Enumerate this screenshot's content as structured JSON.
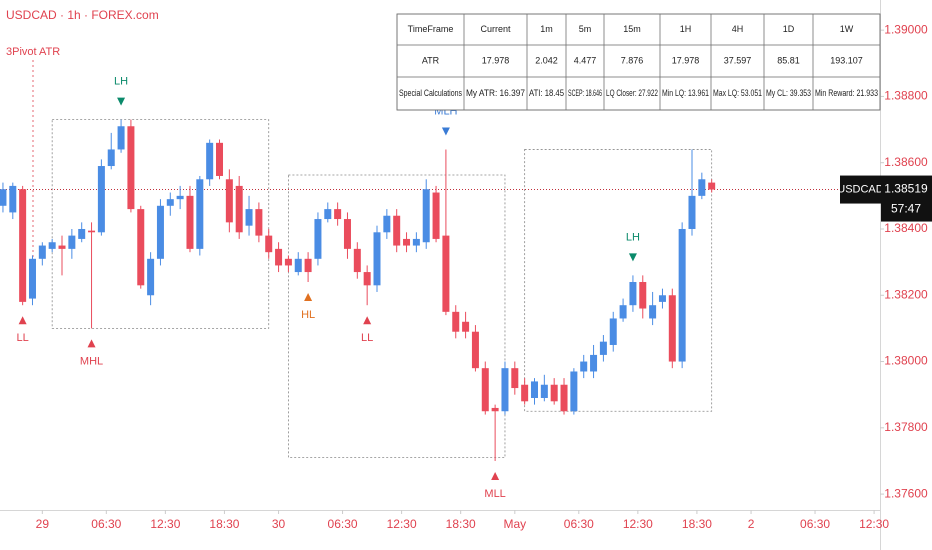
{
  "chart_data": {
    "type": "candlestick",
    "title": "USDCAD · 1h · FOREX.com",
    "indicator": "3Pivot ATR",
    "symbol": "USDCAD",
    "last_price": 1.38519,
    "countdown": "57:47",
    "up_color": "#4a8ce4",
    "down_color": "#ea4c5c",
    "grid": false,
    "xlim": [
      -4.3,
      85.1
    ],
    "xticks": [
      {
        "value": 0,
        "label": "29"
      },
      {
        "value": 6.5,
        "label": "06:30"
      },
      {
        "value": 12.5,
        "label": "12:30"
      },
      {
        "value": 18.5,
        "label": "18:30"
      },
      {
        "value": 24,
        "label": "30"
      },
      {
        "value": 30.5,
        "label": "06:30"
      },
      {
        "value": 36.5,
        "label": "12:30"
      },
      {
        "value": 42.5,
        "label": "18:30"
      },
      {
        "value": 48,
        "label": "May"
      },
      {
        "value": 54.5,
        "label": "06:30"
      },
      {
        "value": 60.5,
        "label": "12:30"
      },
      {
        "value": 66.5,
        "label": "18:30"
      },
      {
        "value": 72,
        "label": "2"
      },
      {
        "value": 78.5,
        "label": "06:30"
      },
      {
        "value": 84.5,
        "label": "12:30"
      }
    ],
    "ylim": [
      1.37552,
      1.39091
    ],
    "yticks": [
      {
        "value": 1.376,
        "label": "1.37600"
      },
      {
        "value": 1.378,
        "label": "1.37800"
      },
      {
        "value": 1.38,
        "label": "1.38000"
      },
      {
        "value": 1.382,
        "label": "1.38200"
      },
      {
        "value": 1.384,
        "label": "1.38400"
      },
      {
        "value": 1.386,
        "label": "1.38600"
      },
      {
        "value": 1.388,
        "label": "1.38800"
      },
      {
        "value": 1.39,
        "label": "1.39000"
      }
    ],
    "x": [
      -4,
      -3,
      -2,
      -1,
      0,
      1,
      2,
      3,
      4,
      5,
      6,
      7,
      8,
      9,
      10,
      11,
      12,
      13,
      14,
      15,
      16,
      17,
      18,
      19,
      20,
      21,
      22,
      23,
      24,
      25,
      26,
      27,
      28,
      29,
      30,
      31,
      32,
      33,
      34,
      35,
      36,
      37,
      38,
      39,
      40,
      41,
      42,
      43,
      44,
      45,
      46,
      47,
      48,
      49,
      50,
      51,
      52,
      53,
      54,
      55,
      56,
      57,
      58,
      59,
      60,
      61,
      62,
      63,
      64,
      65,
      66,
      67,
      68
    ],
    "open": [
      1.3847,
      1.3845,
      1.3852,
      1.3819,
      1.3831,
      1.3834,
      1.3835,
      1.3834,
      1.3837,
      1.38395,
      1.3839,
      1.3859,
      1.3864,
      1.3871,
      1.3846,
      1.382,
      1.3831,
      1.3847,
      1.3849,
      1.385,
      1.3834,
      1.3855,
      1.3866,
      1.3855,
      1.3853,
      1.3841,
      1.3846,
      1.3838,
      1.3834,
      1.3831,
      1.3827,
      1.3831,
      1.3831,
      1.3843,
      1.3846,
      1.3843,
      1.3834,
      1.3827,
      1.3823,
      1.3839,
      1.3844,
      1.3837,
      1.3835,
      1.3836,
      1.3851,
      1.3838,
      1.3815,
      1.3812,
      1.3809,
      1.3798,
      1.3786,
      1.3785,
      1.3798,
      1.3793,
      1.3789,
      1.3789,
      1.3793,
      1.3793,
      1.3785,
      1.3797,
      1.3797,
      1.3802,
      1.3805,
      1.3813,
      1.3817,
      1.3824,
      1.3813,
      1.3818,
      1.382,
      1.38,
      1.384,
      1.385,
      1.3854
    ],
    "high": [
      1.3854,
      1.3854,
      1.3853,
      1.3832,
      1.3836,
      1.3837,
      1.3838,
      1.384,
      1.3842,
      1.3842,
      1.3861,
      1.3869,
      1.3873,
      1.3873,
      1.3847,
      1.3833,
      1.3849,
      1.3851,
      1.3853,
      1.3853,
      1.3856,
      1.3867,
      1.3867,
      1.3858,
      1.3856,
      1.385,
      1.3848,
      1.384,
      1.3836,
      1.3832,
      1.3833,
      1.3833,
      1.3845,
      1.3848,
      1.3848,
      1.3845,
      1.3836,
      1.3829,
      1.3841,
      1.3846,
      1.3846,
      1.3839,
      1.3839,
      1.3855,
      1.3853,
      1.3864,
      1.3817,
      1.3815,
      1.3811,
      1.38,
      1.3787,
      1.38,
      1.38,
      1.3795,
      1.3795,
      1.3796,
      1.3795,
      1.3795,
      1.3798,
      1.3802,
      1.3805,
      1.3808,
      1.3815,
      1.3819,
      1.3826,
      1.3826,
      1.3821,
      1.3822,
      1.3822,
      1.3842,
      1.3864,
      1.3857,
      1.3855
    ],
    "low": [
      1.3845,
      1.3843,
      1.3817,
      1.3817,
      1.3829,
      1.3833,
      1.3826,
      1.3831,
      1.3836,
      1.381,
      1.3838,
      1.3858,
      1.3863,
      1.3845,
      1.3822,
      1.3817,
      1.3829,
      1.3844,
      1.3846,
      1.3833,
      1.3832,
      1.3853,
      1.3855,
      1.3839,
      1.3837,
      1.3838,
      1.3836,
      1.3831,
      1.3827,
      1.3827,
      1.3826,
      1.3824,
      1.3829,
      1.3842,
      1.3841,
      1.3831,
      1.3825,
      1.3817,
      1.3821,
      1.3837,
      1.3833,
      1.3833,
      1.3833,
      1.3834,
      1.3836,
      1.3814,
      1.3807,
      1.3807,
      1.3797,
      1.3784,
      1.377,
      1.3784,
      1.379,
      1.3787,
      1.3787,
      1.3788,
      1.3787,
      1.3784,
      1.3784,
      1.3795,
      1.3795,
      1.38,
      1.3803,
      1.3812,
      1.3815,
      1.3813,
      1.3811,
      1.3816,
      1.3798,
      1.3798,
      1.3838,
      1.3849,
      1.3851
    ],
    "close": [
      1.3852,
      1.3853,
      1.3818,
      1.3831,
      1.3835,
      1.3836,
      1.3834,
      1.3838,
      1.384,
      1.3839,
      1.3859,
      1.3864,
      1.3871,
      1.3846,
      1.3823,
      1.3831,
      1.3847,
      1.3849,
      1.385,
      1.3834,
      1.3855,
      1.3866,
      1.3856,
      1.3842,
      1.3839,
      1.3846,
      1.3838,
      1.3833,
      1.3829,
      1.3829,
      1.3831,
      1.3827,
      1.3843,
      1.3846,
      1.3843,
      1.3834,
      1.3827,
      1.3823,
      1.3839,
      1.3844,
      1.3835,
      1.3835,
      1.3837,
      1.3852,
      1.3837,
      1.3815,
      1.3809,
      1.3809,
      1.3798,
      1.3785,
      1.3785,
      1.3798,
      1.3792,
      1.3788,
      1.3794,
      1.3793,
      1.3788,
      1.3785,
      1.3797,
      1.38,
      1.3802,
      1.3806,
      1.3813,
      1.3817,
      1.3824,
      1.3816,
      1.3817,
      1.382,
      1.38,
      1.384,
      1.385,
      1.3855,
      1.38519
    ],
    "boxes": [
      {
        "x": [
          1,
          23
        ],
        "y": [
          1.381,
          1.3873
        ]
      },
      {
        "x": [
          25,
          47
        ],
        "y": [
          1.3771,
          1.38563
        ]
      },
      {
        "x": [
          49,
          68
        ],
        "y": [
          1.3785,
          1.3864
        ]
      }
    ],
    "annotations": [
      {
        "text": "LL",
        "x": -2,
        "y": 1.3817,
        "color": "#e0424f",
        "side": "below"
      },
      {
        "text": "MHL",
        "x": 5,
        "y": 1.381,
        "color": "#e0424f",
        "side": "below"
      },
      {
        "text": "LH",
        "x": 8,
        "y": 1.3873,
        "color": "#0b8a6b",
        "side": "above"
      },
      {
        "text": "HL",
        "x": 27,
        "y": 1.3824,
        "color": "#e07020",
        "side": "below"
      },
      {
        "text": "LL",
        "x": 33,
        "y": 1.3817,
        "color": "#e0424f",
        "side": "below"
      },
      {
        "text": "MLH",
        "x": 41,
        "y": 1.3864,
        "color": "#3a7bd5",
        "side": "above"
      },
      {
        "text": "MLL",
        "x": 46,
        "y": 1.377,
        "color": "#e0424f",
        "side": "below"
      },
      {
        "text": "LH",
        "x": 60,
        "y": 1.3826,
        "color": "#0b8a6b",
        "side": "above"
      }
    ]
  },
  "table": {
    "header": [
      "TimeFrame",
      "Current",
      "1m",
      "5m",
      "15m",
      "1H",
      "4H",
      "1D",
      "1W"
    ],
    "rows": [
      [
        "ATR",
        "17.978",
        "2.042",
        "4.477",
        "7.876",
        "17.978",
        "37.597",
        "85.81",
        "193.107"
      ],
      [
        "Special Calculations",
        "My ATR: 16.397",
        "ATI: 18.45",
        "SCEP: 18.646",
        "LQ Closer: 27.922",
        "Min LQ: 13.961",
        "Max LQ: 53.051",
        "My CL: 39.353",
        "Min Reward: 21.933"
      ]
    ]
  }
}
